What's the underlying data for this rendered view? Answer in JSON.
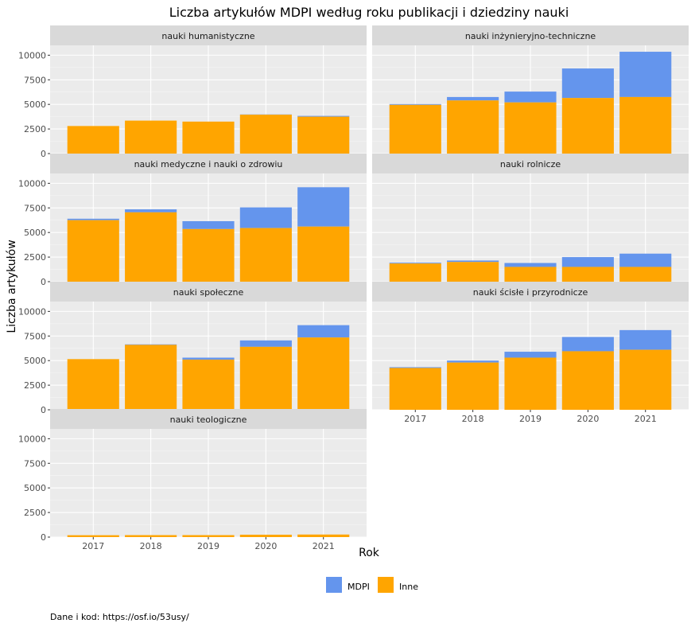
{
  "chart_data": {
    "type": "bar",
    "stacked": true,
    "faceted": true,
    "title": "Liczba artykułów MDPI według roku publikacji i dziedziny nauki",
    "xlabel": "Rok",
    "ylabel": "Liczba artykułów",
    "caption": "Dane i kod: https://osf.io/53usy/",
    "categories": [
      "2017",
      "2018",
      "2019",
      "2020",
      "2021"
    ],
    "ylim": [
      0,
      11000
    ],
    "yticks": [
      0,
      2500,
      5000,
      7500,
      10000
    ],
    "legend": {
      "position": "bottom",
      "entries": [
        {
          "name": "MDPI",
          "color": "#6495ED"
        },
        {
          "name": "Inne",
          "color": "#FFA500"
        }
      ]
    },
    "panels": [
      {
        "name": "nauki humanistyczne",
        "inne": [
          2800,
          3350,
          3250,
          3950,
          3750
        ],
        "mdpi": [
          0,
          0,
          0,
          30,
          80
        ]
      },
      {
        "name": "nauki inżynieryjno-techniczne",
        "inne": [
          4950,
          5400,
          5200,
          5650,
          5750
        ],
        "mdpi": [
          80,
          350,
          1100,
          3000,
          4600
        ]
      },
      {
        "name": "nauki medyczne i nauki o zdrowiu",
        "inne": [
          6250,
          7050,
          5350,
          5450,
          5600
        ],
        "mdpi": [
          150,
          300,
          800,
          2100,
          4000
        ]
      },
      {
        "name": "nauki rolnicze",
        "inne": [
          1850,
          2000,
          1500,
          1500,
          1500
        ],
        "mdpi": [
          80,
          150,
          400,
          1000,
          1350
        ]
      },
      {
        "name": "nauki społeczne",
        "inne": [
          5150,
          6600,
          5100,
          6400,
          7350
        ],
        "mdpi": [
          0,
          50,
          200,
          650,
          1250
        ]
      },
      {
        "name": "nauki ścisłe i przyrodnicze",
        "inne": [
          4250,
          4800,
          5300,
          5950,
          6100
        ],
        "mdpi": [
          80,
          200,
          600,
          1450,
          2000
        ]
      },
      {
        "name": "nauki teologiczne",
        "inne": [
          190,
          200,
          200,
          240,
          260
        ],
        "mdpi": [
          0,
          0,
          0,
          0,
          0
        ]
      }
    ]
  }
}
